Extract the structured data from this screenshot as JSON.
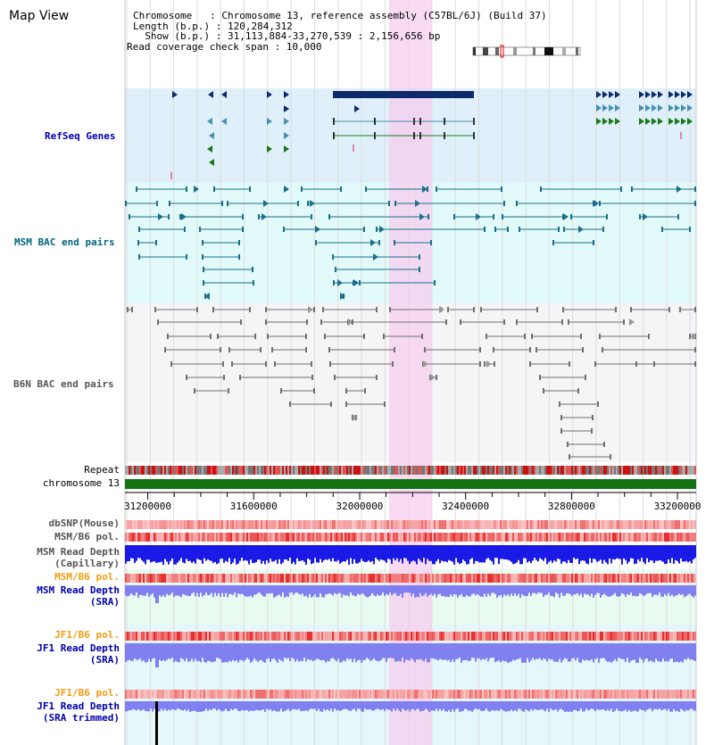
{
  "title": "Map View",
  "info": {
    "chromosome": "Chromosome   : Chromosome 13, reference assembly (C57BL/6J) (Build 37)",
    "length": "Length (b.p.) : 120,284,312",
    "show": "  Show (b.p.) : 31,113,884-33,270,539 : 2,156,656 bp",
    "coverage": "Read coverage check span : 10,000"
  },
  "tracks": {
    "refseq": "RefSeq Genes",
    "msm_bac": "MSM BAC end pairs",
    "b6n_bac": "B6N BAC end pairs",
    "repeat": "Repeat",
    "chromosome": "chromosome 13",
    "dbsnp": "dbSNP(Mouse)",
    "msm_b6_pol": "MSM/B6 pol.",
    "msm_depth_cap_1": "MSM Read Depth",
    "msm_depth_cap_2": "(Capillary)",
    "msm_b6_pol_2": "MSM/B6 pol.",
    "msm_depth_sra_1": "MSM Read Depth",
    "msm_depth_sra_2": "(SRA)",
    "jf1_b6_pol": "JF1/B6 pol.",
    "jf1_depth_sra_1": "JF1 Read Depth",
    "jf1_depth_sra_2": "(SRA)",
    "jf1_b6_pol_2": "JF1/B6 pol.",
    "jf1_depth_trim_1": "JF1 Read Depth",
    "jf1_depth_trim_2": "(SRA trimmed)"
  },
  "axis": {
    "ticks": [
      "31200000",
      "31600000",
      "32000000",
      "32400000",
      "32800000",
      "33200000"
    ]
  },
  "colors": {
    "refseq_bg": "#dff0fa",
    "msm_bg": "#e3fafa",
    "b6n_bg": "#f5f5f8",
    "highlight": "#f6cdee",
    "chromosome": "#137313",
    "capillary": "#1a1ae6",
    "sra": "#8080f0",
    "teal": "#1a6f8a",
    "navy": "#0d2a6a"
  }
}
